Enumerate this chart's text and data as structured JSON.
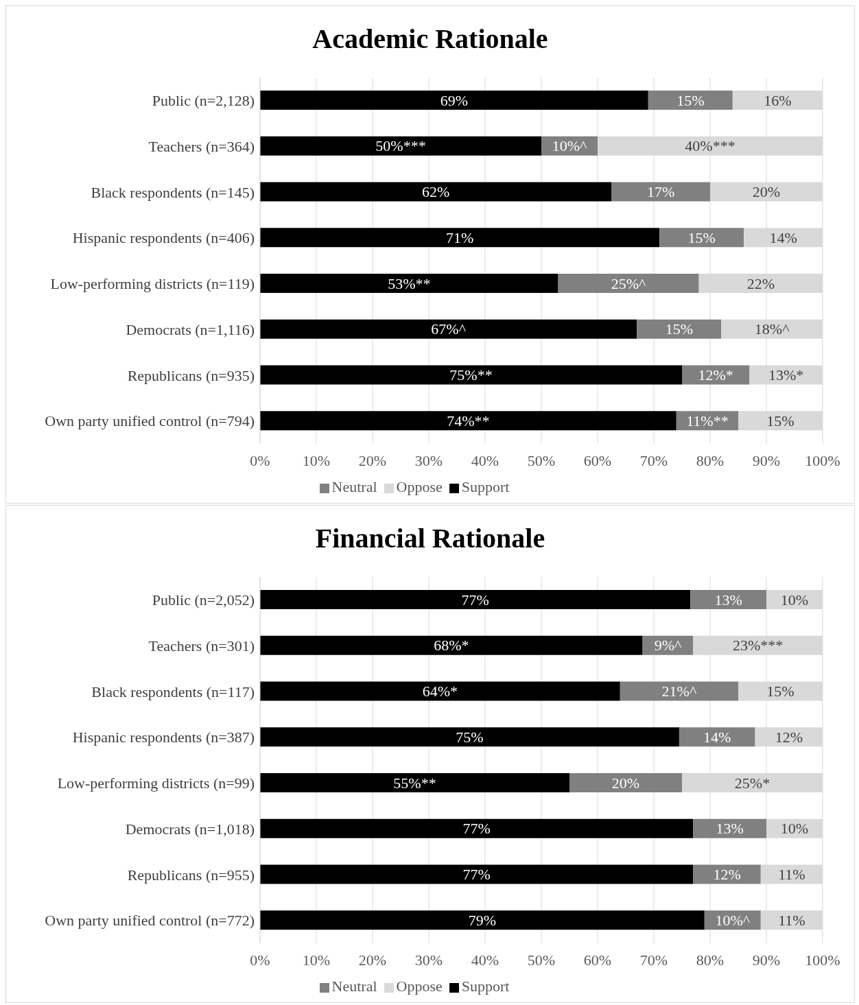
{
  "chart_data": [
    {
      "type": "bar",
      "title": "Academic Rationale",
      "orientation": "horizontal",
      "stacked": true,
      "categories": [
        "Public (n=2,128)",
        "Teachers (n=364)",
        "Black respondents (n=145)",
        "Hispanic respondents (n=406)",
        "Low-performing districts (n=119)",
        "Democrats  (n=1,116)",
        "Republicans (n=935)",
        "Own party unified control (n=794)"
      ],
      "series": [
        {
          "name": "Support",
          "color": "#000000",
          "values": [
            69,
            50,
            62.5,
            71,
            53,
            67,
            75,
            74
          ],
          "value_labels": [
            "69%",
            "50%***",
            "62%",
            "71%",
            "53%**",
            "67%^",
            "75%**",
            "74%**"
          ]
        },
        {
          "name": "Neutral",
          "color": "#808080",
          "values": [
            15,
            10,
            17.5,
            15,
            25,
            15,
            12,
            11
          ],
          "value_labels": [
            "15%",
            "10%^",
            "17%",
            "15%",
            "25%^",
            "15%",
            "12%*",
            "11%**"
          ]
        },
        {
          "name": "Oppose",
          "color": "#d9d9d9",
          "values": [
            16,
            40,
            20,
            14,
            22,
            18,
            13,
            15
          ],
          "value_labels": [
            "16%",
            "40%***",
            "20%",
            "14%",
            "22%",
            "18%^",
            "13%*",
            "15%"
          ]
        }
      ],
      "xlim": [
        0,
        100
      ],
      "xticks": [
        {
          "value": 0,
          "label": "0%"
        },
        {
          "value": 10,
          "label": "10%"
        },
        {
          "value": 20,
          "label": "20%"
        },
        {
          "value": 30,
          "label": "30%"
        },
        {
          "value": 40,
          "label": "40%"
        },
        {
          "value": 50,
          "label": "50%"
        },
        {
          "value": 60,
          "label": "60%"
        },
        {
          "value": 70,
          "label": "70%"
        },
        {
          "value": 80,
          "label": "80%"
        },
        {
          "value": 90,
          "label": "90%"
        },
        {
          "value": 100,
          "label": "100%"
        }
      ],
      "grid": "x",
      "legend": "bottom"
    },
    {
      "type": "bar",
      "title": "Financial Rationale",
      "orientation": "horizontal",
      "stacked": true,
      "categories": [
        "Public (n=2,052)",
        "Teachers (n=301)",
        "Black respondents (n=117)",
        "Hispanic respondents (n=387)",
        "Low-performing districts (n=99)",
        "Democrats (n=1,018)",
        "Republicans (n=955)",
        "Own party unified control (n=772)"
      ],
      "series": [
        {
          "name": "Support",
          "color": "#000000",
          "values": [
            76.5,
            68,
            64,
            74.5,
            55,
            77,
            77,
            79
          ],
          "value_labels": [
            "77%",
            "68%*",
            "64%*",
            "75%",
            "55%**",
            "77%",
            "77%",
            "79%"
          ]
        },
        {
          "name": "Neutral",
          "color": "#808080",
          "values": [
            13.5,
            9,
            21,
            13.5,
            20,
            13,
            12,
            10
          ],
          "value_labels": [
            "13%",
            "9%^",
            "21%^",
            "14%",
            "20%",
            "13%",
            "12%",
            "10%^"
          ]
        },
        {
          "name": "Oppose",
          "color": "#d9d9d9",
          "values": [
            10,
            23,
            15,
            12,
            25,
            10,
            11,
            11
          ],
          "value_labels": [
            "10%",
            "23%***",
            "15%",
            "12%",
            "25%*",
            "10%",
            "11%",
            "11%"
          ]
        }
      ],
      "xlim": [
        0,
        100
      ],
      "xticks": [
        {
          "value": 0,
          "label": "0%"
        },
        {
          "value": 10,
          "label": "10%"
        },
        {
          "value": 20,
          "label": "20%"
        },
        {
          "value": 30,
          "label": "30%"
        },
        {
          "value": 40,
          "label": "40%"
        },
        {
          "value": 50,
          "label": "50%"
        },
        {
          "value": 60,
          "label": "60%"
        },
        {
          "value": 70,
          "label": "70%"
        },
        {
          "value": 80,
          "label": "80%"
        },
        {
          "value": 90,
          "label": "90%"
        },
        {
          "value": 100,
          "label": "100%"
        }
      ],
      "grid": "x",
      "legend": "bottom"
    }
  ]
}
